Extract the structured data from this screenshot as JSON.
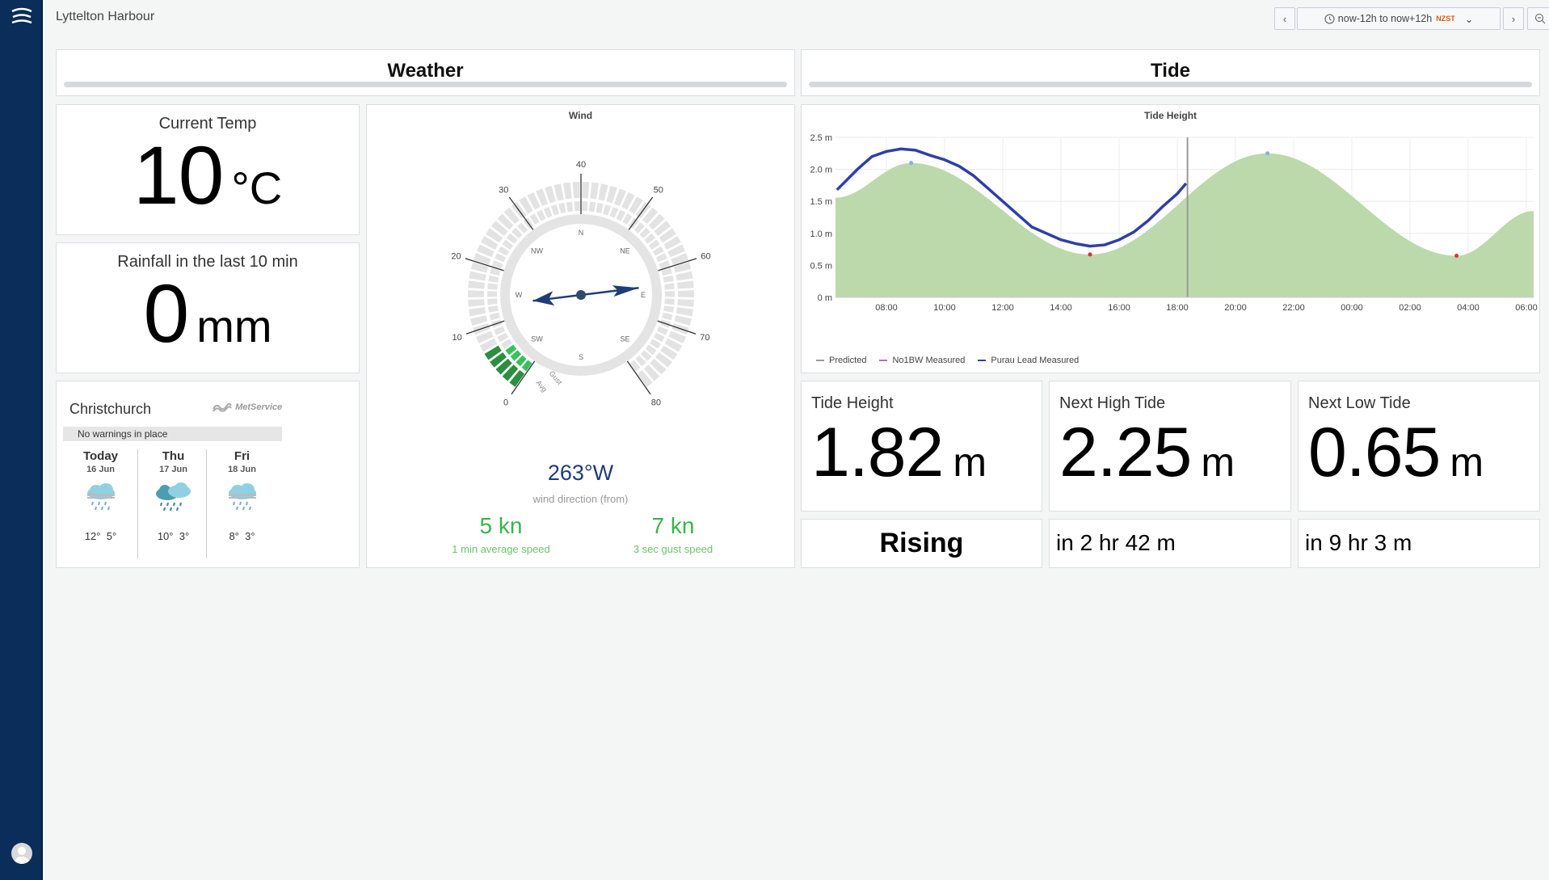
{
  "dashboard": {
    "title": "Lyttelton Harbour",
    "time_range": "now-12h to now+12h",
    "timezone": "NZST"
  },
  "rows": {
    "weather": "Weather",
    "tide": "Tide"
  },
  "current_temp": {
    "label": "Current Temp",
    "value": "10",
    "unit": "°C"
  },
  "rainfall": {
    "label": "Rainfall in the last 10 min",
    "value": "0",
    "unit": "mm"
  },
  "forecast": {
    "city": "Christchurch",
    "brand": "MetService",
    "warning": "No warnings in place",
    "days": [
      {
        "name": "Today",
        "date": "16 Jun",
        "high": "12°",
        "low": "5°",
        "icon": "rain-cloud-icon"
      },
      {
        "name": "Thu",
        "date": "17 Jun",
        "high": "10°",
        "low": "3°",
        "icon": "heavy-rain-cloud-icon"
      },
      {
        "name": "Fri",
        "date": "18 Jun",
        "high": "8°",
        "low": "3°",
        "icon": "rain-cloud-icon"
      }
    ]
  },
  "wind": {
    "title": "Wind",
    "direction_deg": 263,
    "direction_text": "263°W",
    "direction_label": "wind direction (from)",
    "avg_speed": "5 kn",
    "avg_label": "1 min average speed",
    "gust_speed": "7 kn",
    "gust_label": "3 sec gust speed",
    "avg_value": 5,
    "gust_value": 7,
    "scale_max": 80,
    "scale_ticks": [
      "0",
      "10",
      "20",
      "30",
      "40",
      "50",
      "60",
      "70",
      "80"
    ],
    "compass": [
      "N",
      "NE",
      "E",
      "SE",
      "S",
      "SW",
      "W",
      "NW"
    ],
    "ring_labels": {
      "gust": "Gust",
      "avg": "Avg"
    }
  },
  "tide_chart": {
    "title": "Tide Height",
    "chart_data": {
      "type": "area",
      "title": "Tide Height",
      "x_ticks": [
        "08:00",
        "10:00",
        "12:00",
        "14:00",
        "16:00",
        "18:00",
        "20:00",
        "22:00",
        "00:00",
        "02:00",
        "04:00",
        "06:00"
      ],
      "y_ticks": [
        "0 m",
        "0.5 m",
        "1.0 m",
        "1.5 m",
        "2.0 m",
        "2.5 m"
      ],
      "ylim": [
        0,
        2.5
      ],
      "xlim_hours": [
        6.25,
        30.25
      ],
      "now_hour": 18.35,
      "legend": [
        "Predicted",
        "No1BW Measured",
        "Purau Lead Measured"
      ],
      "predicted_extremes": [
        {
          "hour": 8.85,
          "height": 2.1,
          "type": "high"
        },
        {
          "hour": 15.0,
          "height": 0.67,
          "type": "low"
        },
        {
          "hour": 21.1,
          "height": 2.25,
          "type": "high"
        },
        {
          "hour": 27.6,
          "height": 0.65,
          "type": "low"
        }
      ],
      "predicted_end": {
        "hour": 30.25,
        "height": 1.35
      },
      "measured": [
        [
          6.3,
          1.68
        ],
        [
          7.0,
          2.0
        ],
        [
          7.5,
          2.2
        ],
        [
          8.0,
          2.28
        ],
        [
          8.5,
          2.32
        ],
        [
          9.0,
          2.3
        ],
        [
          9.5,
          2.22
        ],
        [
          10.0,
          2.15
        ],
        [
          10.5,
          2.05
        ],
        [
          11.0,
          1.9
        ],
        [
          11.5,
          1.7
        ],
        [
          12.0,
          1.5
        ],
        [
          12.5,
          1.3
        ],
        [
          13.0,
          1.1
        ],
        [
          13.5,
          1.0
        ],
        [
          14.0,
          0.9
        ],
        [
          14.5,
          0.84
        ],
        [
          15.0,
          0.8
        ],
        [
          15.5,
          0.82
        ],
        [
          16.0,
          0.9
        ],
        [
          16.5,
          1.02
        ],
        [
          17.0,
          1.2
        ],
        [
          17.5,
          1.42
        ],
        [
          18.0,
          1.62
        ],
        [
          18.3,
          1.78
        ]
      ]
    }
  },
  "tide_stats": {
    "height": {
      "label": "Tide Height",
      "value": "1.82",
      "unit": "m"
    },
    "next_high": {
      "label": "Next High Tide",
      "value": "2.25",
      "unit": "m"
    },
    "next_low": {
      "label": "Next Low Tide",
      "value": "0.65",
      "unit": "m"
    },
    "trend": "Rising",
    "high_in": "in 2 hr 42 m",
    "low_in": "in 9 hr 3 m"
  },
  "colors": {
    "sidebar": "#0a2d5a",
    "predicted_fill": "#bcd9ac",
    "measured_line": "#2f3fa8",
    "wind_arrow": "#1e3c78",
    "speed_green": "#3bb34a"
  }
}
